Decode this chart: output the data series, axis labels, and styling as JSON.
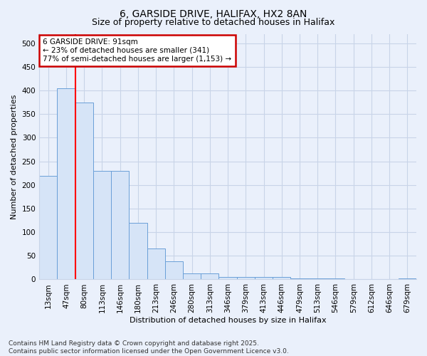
{
  "title1": "6, GARSIDE DRIVE, HALIFAX, HX2 8AN",
  "title2": "Size of property relative to detached houses in Halifax",
  "xlabel": "Distribution of detached houses by size in Halifax",
  "ylabel": "Number of detached properties",
  "categories": [
    "13sqm",
    "47sqm",
    "80sqm",
    "113sqm",
    "146sqm",
    "180sqm",
    "213sqm",
    "246sqm",
    "280sqm",
    "313sqm",
    "346sqm",
    "379sqm",
    "413sqm",
    "446sqm",
    "479sqm",
    "513sqm",
    "546sqm",
    "579sqm",
    "612sqm",
    "646sqm",
    "679sqm"
  ],
  "values": [
    220,
    405,
    375,
    230,
    230,
    120,
    65,
    38,
    12,
    12,
    5,
    5,
    5,
    5,
    2,
    2,
    2,
    0,
    0,
    0,
    2
  ],
  "bar_color": "#d6e4f7",
  "bar_edge_color": "#6a9fd8",
  "red_line_index": 2,
  "annotation_text": "6 GARSIDE DRIVE: 91sqm\n← 23% of detached houses are smaller (341)\n77% of semi-detached houses are larger (1,153) →",
  "annotation_box_color": "#ffffff",
  "annotation_box_edge": "#cc0000",
  "ylim": [
    0,
    520
  ],
  "yticks": [
    0,
    50,
    100,
    150,
    200,
    250,
    300,
    350,
    400,
    450,
    500
  ],
  "footer1": "Contains HM Land Registry data © Crown copyright and database right 2025.",
  "footer2": "Contains public sector information licensed under the Open Government Licence v3.0.",
  "bg_color": "#eaf0fb",
  "plot_bg_color": "#eaf0fb",
  "grid_color": "#c8d4e8",
  "title1_fontsize": 10,
  "title2_fontsize": 9,
  "axis_label_fontsize": 8,
  "tick_fontsize": 7.5,
  "footer_fontsize": 6.5,
  "annotation_fontsize": 7.5
}
